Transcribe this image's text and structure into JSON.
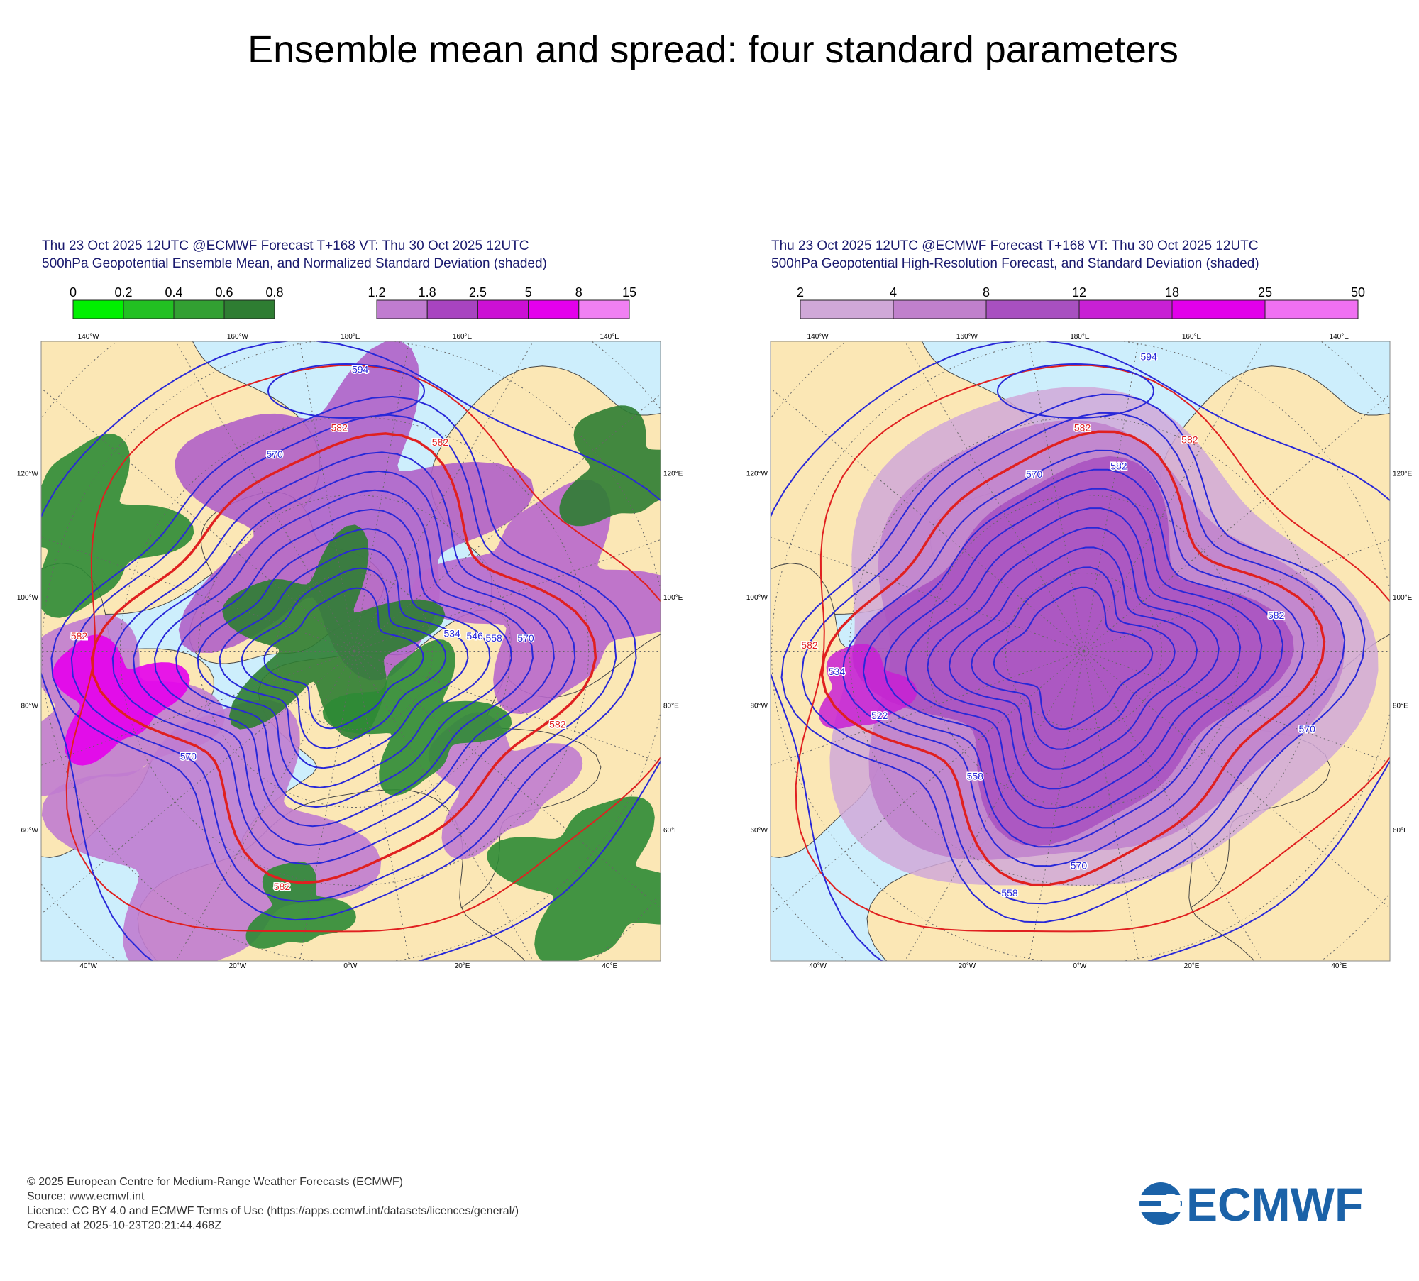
{
  "title": "Ensemble mean and spread: four standard parameters",
  "map_labels": {
    "top": [
      "140°W",
      "160°W",
      "180°E",
      "160°E",
      "140°E"
    ],
    "bottom": [
      "40°W",
      "20°W",
      "0°W",
      "20°E",
      "40°E"
    ],
    "left": [
      "120°W",
      "100°W",
      "80°W",
      "60°W"
    ],
    "right": [
      "120°E",
      "100°E",
      "80°E",
      "60°E"
    ]
  },
  "panels": [
    {
      "header": [
        "Thu 23 Oct 2025 12UTC @ECMWF Forecast T+168 VT: Thu 30 Oct 2025 12UTC",
        "500hPa Geopotential Ensemble Mean, and Normalized Standard Deviation (shaded)"
      ],
      "colorbars": [
        {
          "ticks": [
            0,
            0.2,
            0.4,
            0.6,
            0.8
          ],
          "colors": [
            "#00f000",
            "#22c022",
            "#32a032",
            "#2e7d32"
          ]
        },
        {
          "ticks": [
            1.2,
            1.8,
            2.5,
            5,
            8,
            15
          ],
          "colors": [
            "#c07cd0",
            "#a844c0",
            "#cc10d4",
            "#e400ec",
            "#f080f2"
          ]
        }
      ],
      "contour_labels": [
        "582",
        "582",
        "582",
        "582",
        "582",
        "570",
        "594",
        "534",
        "546",
        "558",
        "570",
        "570"
      ]
    },
    {
      "header": [
        "Thu 23 Oct 2025 12UTC @ECMWF Forecast T+168 VT: Thu 30 Oct 2025 12UTC",
        "500hPa Geopotential High-Resolution Forecast, and Standard Deviation (shaded)"
      ],
      "colorbars": [
        {
          "ticks": [
            2,
            4,
            8,
            12,
            18,
            25,
            50
          ],
          "colors": [
            "#d0a8d8",
            "#c080cc",
            "#a850c0",
            "#c820d4",
            "#e200ea",
            "#f070f2"
          ]
        }
      ],
      "contour_labels": [
        "594",
        "582",
        "582",
        "582",
        "570",
        "558",
        "534",
        "522",
        "558",
        "570",
        "582",
        "582",
        "570"
      ]
    }
  ],
  "footer": [
    "© 2025 European Centre for Medium-Range Weather Forecasts (ECMWF)",
    "Source: www.ecmwf.int",
    "Licence: CC BY 4.0 and ECMWF Terms of Use (https://apps.ecmwf.int/datasets/licences/general/)",
    "Created at 2025-10-23T20:21:44.468Z"
  ],
  "logo": "ECMWF"
}
